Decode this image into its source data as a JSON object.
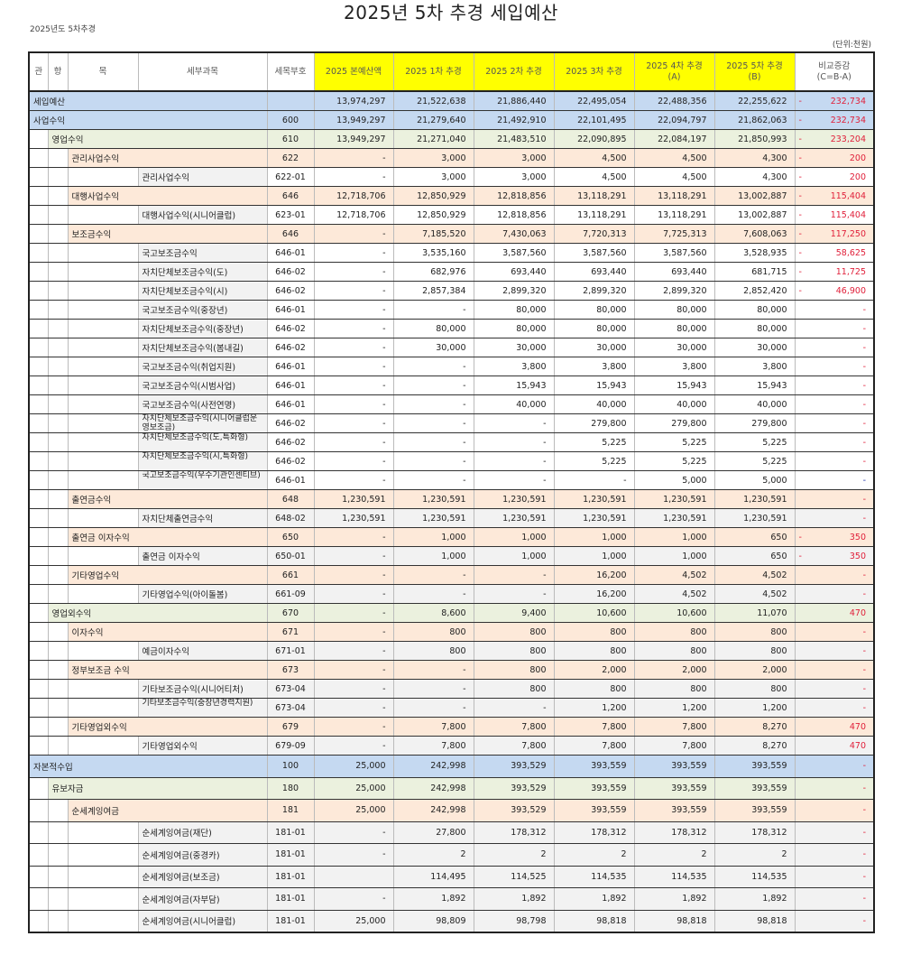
{
  "title": "2025년 5차 추경 세입예산",
  "subtitle": "2025년도 5차추경",
  "unit": "(단위:천원)",
  "colors": {
    "level0": "#c5d9f1",
    "level1": "#ebf1de",
    "level2": "#fde9d9",
    "header_highlight": "#ffff00",
    "detail": "#f2f2f2",
    "negative": "#e0203a",
    "blue_dash": "#2233aa"
  },
  "table": {
    "headers": [
      "관",
      "항",
      "목",
      "세부과목",
      "세목부호",
      "2025 본예산액",
      "2025 1차 추경",
      "2025 2차 추경",
      "2025 3차 추경",
      "2025 4차 추경\n(A)",
      "2025 5차 추경\n(B)",
      "비교증감\n(C=B-A)"
    ],
    "rows": [
      {
        "lvl": 0,
        "name": "세입예산",
        "code": "",
        "vals": [
          "13,974,297",
          "21,522,638",
          "21,886,440",
          "22,495,054",
          "22,488,356",
          "22,255,622"
        ],
        "sign": "-",
        "diff": "232,734"
      },
      {
        "lvl": 0,
        "name": "사업수익",
        "code": "600",
        "vals": [
          "13,949,297",
          "21,279,640",
          "21,492,910",
          "22,101,495",
          "22,094,797",
          "21,862,063"
        ],
        "sign": "-",
        "diff": "232,734"
      },
      {
        "lvl": 1,
        "name": "영업수익",
        "code": "610",
        "vals": [
          "13,949,297",
          "21,271,040",
          "21,483,510",
          "22,090,895",
          "22,084,197",
          "21,850,993"
        ],
        "sign": "-",
        "diff": "233,204"
      },
      {
        "lvl": 2,
        "name": "관리사업수익",
        "code": "622",
        "vals": [
          "-",
          "3,000",
          "3,000",
          "4,500",
          "4,500",
          "4,300"
        ],
        "sign": "-",
        "diff": "200"
      },
      {
        "lvl": 3,
        "name": "관리사업수익",
        "code": "622-01",
        "vals": [
          "-",
          "3,000",
          "3,000",
          "4,500",
          "4,500",
          "4,300"
        ],
        "sign": "-",
        "diff": "200"
      },
      {
        "lvl": 2,
        "name": "대행사업수익",
        "code": "646",
        "vals": [
          "12,718,706",
          "12,850,929",
          "12,818,856",
          "13,118,291",
          "13,118,291",
          "13,002,887"
        ],
        "sign": "-",
        "diff": "115,404"
      },
      {
        "lvl": 3,
        "name": "대행사업수익(시니어클럽)",
        "code": "623-01",
        "vals": [
          "12,718,706",
          "12,850,929",
          "12,818,856",
          "13,118,291",
          "13,118,291",
          "13,002,887"
        ],
        "sign": "-",
        "diff": "115,404"
      },
      {
        "lvl": 2,
        "name": "보조금수익",
        "code": "646",
        "vals": [
          "-",
          "7,185,520",
          "7,430,063",
          "7,720,313",
          "7,725,313",
          "7,608,063"
        ],
        "sign": "-",
        "diff": "117,250"
      },
      {
        "lvl": 3,
        "name": "국고보조금수익",
        "code": "646-01",
        "vals": [
          "-",
          "3,535,160",
          "3,587,560",
          "3,587,560",
          "3,587,560",
          "3,528,935"
        ],
        "sign": "-",
        "diff": "58,625"
      },
      {
        "lvl": 3,
        "name": "자치단체보조금수익(도)",
        "code": "646-02",
        "vals": [
          "-",
          "682,976",
          "693,440",
          "693,440",
          "693,440",
          "681,715"
        ],
        "sign": "-",
        "diff": "11,725"
      },
      {
        "lvl": 3,
        "name": "자치단체보조금수익(시)",
        "code": "646-02",
        "vals": [
          "-",
          "2,857,384",
          "2,899,320",
          "2,899,320",
          "2,899,320",
          "2,852,420"
        ],
        "sign": "-",
        "diff": "46,900"
      },
      {
        "lvl": 3,
        "name": "국고보조금수익(중장년)",
        "code": "646-01",
        "vals": [
          "-",
          "-",
          "80,000",
          "80,000",
          "80,000",
          "80,000"
        ],
        "sign": "",
        "diff": "-"
      },
      {
        "lvl": 3,
        "name": "자치단체보조금수익(중장년)",
        "code": "646-02",
        "vals": [
          "-",
          "80,000",
          "80,000",
          "80,000",
          "80,000",
          "80,000"
        ],
        "sign": "",
        "diff": "-"
      },
      {
        "lvl": 3,
        "name": "자치단체보조금수익(봄내길)",
        "code": "646-02",
        "vals": [
          "-",
          "30,000",
          "30,000",
          "30,000",
          "30,000",
          "30,000"
        ],
        "sign": "",
        "diff": "-"
      },
      {
        "lvl": 3,
        "name": "국고보조금수익(취업지원)",
        "code": "646-01",
        "vals": [
          "-",
          "-",
          "3,800",
          "3,800",
          "3,800",
          "3,800"
        ],
        "sign": "",
        "diff": "-"
      },
      {
        "lvl": 3,
        "name": "국고보조금수익(시범사업)",
        "code": "646-01",
        "vals": [
          "-",
          "-",
          "15,943",
          "15,943",
          "15,943",
          "15,943"
        ],
        "sign": "",
        "diff": "-"
      },
      {
        "lvl": 3,
        "name": "국고보조금수익(사전연명)",
        "code": "646-01",
        "vals": [
          "-",
          "-",
          "40,000",
          "40,000",
          "40,000",
          "40,000"
        ],
        "sign": "",
        "diff": "-"
      },
      {
        "lvl": 3,
        "name": "자치단체보조금수익(시니어클럽운영보조금)",
        "code": "646-02",
        "vals": [
          "-",
          "-",
          "-",
          "279,800",
          "279,800",
          "279,800"
        ],
        "sign": "",
        "diff": "-"
      },
      {
        "lvl": 3,
        "name": "자치단체보조금수익(도,특화형)",
        "code": "646-02",
        "vals": [
          "-",
          "-",
          "-",
          "5,225",
          "5,225",
          "5,225"
        ],
        "sign": "",
        "diff": "-"
      },
      {
        "lvl": 3,
        "name": "자치단체보조금수익(시,특화형)",
        "code": "646-02",
        "vals": [
          "-",
          "-",
          "-",
          "5,225",
          "5,225",
          "5,225"
        ],
        "sign": "",
        "diff": "-"
      },
      {
        "lvl": 3,
        "name": "국고보조금수익(우수기관인센티브)",
        "code": "646-01",
        "vals": [
          "-",
          "-",
          "-",
          "-",
          "5,000",
          "5,000"
        ],
        "sign": "",
        "diff": "-",
        "diff_color": "blue"
      },
      {
        "lvl": 2,
        "name": "출연금수익",
        "code": "648",
        "vals": [
          "1,230,591",
          "1,230,591",
          "1,230,591",
          "1,230,591",
          "1,230,591",
          "1,230,591"
        ],
        "sign": "",
        "diff": "-"
      },
      {
        "lvl": 3,
        "name": "자치단체출연금수익",
        "code": "648-02",
        "vals": [
          "1,230,591",
          "1,230,591",
          "1,230,591",
          "1,230,591",
          "1,230,591",
          "1,230,591"
        ],
        "sign": "",
        "diff": "-"
      },
      {
        "lvl": 2,
        "name": "출연금 이자수익",
        "code": "650",
        "vals": [
          "-",
          "1,000",
          "1,000",
          "1,000",
          "1,000",
          "650"
        ],
        "sign": "-",
        "diff": "350"
      },
      {
        "lvl": 3,
        "name": "출연금 이자수익",
        "code": "650-01",
        "vals": [
          "-",
          "1,000",
          "1,000",
          "1,000",
          "1,000",
          "650"
        ],
        "sign": "-",
        "diff": "350"
      },
      {
        "lvl": 2,
        "name": "기타영업수익",
        "code": "661",
        "vals": [
          "-",
          "-",
          "-",
          "16,200",
          "4,502",
          "4,502"
        ],
        "sign": "",
        "diff": "-"
      },
      {
        "lvl": 3,
        "name": "기타영업수익(아이돌봄)",
        "code": "661-09",
        "vals": [
          "-",
          "-",
          "-",
          "16,200",
          "4,502",
          "4,502"
        ],
        "sign": "",
        "diff": "-"
      },
      {
        "lvl": 1,
        "name": "영업외수익",
        "code": "670",
        "vals": [
          "-",
          "8,600",
          "9,400",
          "10,600",
          "10,600",
          "11,070"
        ],
        "sign": "",
        "diff": "470"
      },
      {
        "lvl": 2,
        "name": "이자수익",
        "code": "671",
        "vals": [
          "-",
          "800",
          "800",
          "800",
          "800",
          "800"
        ],
        "sign": "",
        "diff": "-"
      },
      {
        "lvl": 3,
        "name": "예금이자수익",
        "code": "671-01",
        "vals": [
          "-",
          "800",
          "800",
          "800",
          "800",
          "800"
        ],
        "sign": "",
        "diff": "-"
      },
      {
        "lvl": 2,
        "name": "정부보조금 수익",
        "code": "673",
        "vals": [
          "-",
          "-",
          "800",
          "2,000",
          "2,000",
          "2,000"
        ],
        "sign": "",
        "diff": "-"
      },
      {
        "lvl": 3,
        "name": "기타보조금수익(시니어티처)",
        "code": "673-04",
        "vals": [
          "-",
          "-",
          "800",
          "800",
          "800",
          "800"
        ],
        "sign": "",
        "diff": "-"
      },
      {
        "lvl": 3,
        "name": "기타보조금수익(중장년경력지원)",
        "code": "673-04",
        "vals": [
          "-",
          "-",
          "-",
          "1,200",
          "1,200",
          "1,200"
        ],
        "sign": "",
        "diff": "-"
      },
      {
        "lvl": 2,
        "name": "기타영업외수익",
        "code": "679",
        "vals": [
          "-",
          "7,800",
          "7,800",
          "7,800",
          "7,800",
          "8,270"
        ],
        "sign": "",
        "diff": "470"
      },
      {
        "lvl": 3,
        "name": "기타영업외수익",
        "code": "679-09",
        "vals": [
          "-",
          "7,800",
          "7,800",
          "7,800",
          "7,800",
          "8,270"
        ],
        "sign": "",
        "diff": "470"
      },
      {
        "lvl": 0,
        "name": "자본적수입",
        "code": "100",
        "vals": [
          "25,000",
          "242,998",
          "393,529",
          "393,559",
          "393,559",
          "393,559"
        ],
        "sign": "",
        "diff": "-"
      },
      {
        "lvl": 1,
        "name": "유보자금",
        "code": "180",
        "vals": [
          "25,000",
          "242,998",
          "393,529",
          "393,559",
          "393,559",
          "393,559"
        ],
        "sign": "",
        "diff": "-"
      },
      {
        "lvl": 2,
        "name": "순세계잉여금",
        "code": "181",
        "vals": [
          "25,000",
          "242,998",
          "393,529",
          "393,559",
          "393,559",
          "393,559"
        ],
        "sign": "",
        "diff": "-"
      },
      {
        "lvl": 3,
        "name": "순세계잉여금(재단)",
        "code": "181-01",
        "vals": [
          "-",
          "27,800",
          "178,312",
          "178,312",
          "178,312",
          "178,312"
        ],
        "sign": "",
        "diff": "-"
      },
      {
        "lvl": 3,
        "name": "순세계잉여금(중경카)",
        "code": "181-01",
        "vals": [
          "-",
          "2",
          "2",
          "2",
          "2",
          "2"
        ],
        "sign": "",
        "diff": "-"
      },
      {
        "lvl": 3,
        "name": "순세계잉여금(보조금)",
        "code": "181-01",
        "vals": [
          "",
          "114,495",
          "114,525",
          "114,535",
          "114,535",
          "114,535"
        ],
        "sign": "",
        "diff": "-"
      },
      {
        "lvl": 3,
        "name": "순세계잉여금(자부담)",
        "code": "181-01",
        "vals": [
          "-",
          "1,892",
          "1,892",
          "1,892",
          "1,892",
          "1,892"
        ],
        "sign": "",
        "diff": "-"
      },
      {
        "lvl": 3,
        "name": "순세계잉여금(시니어클럽)",
        "code": "181-01",
        "vals": [
          "25,000",
          "98,809",
          "98,798",
          "98,818",
          "98,818",
          "98,818"
        ],
        "sign": "",
        "diff": "-"
      }
    ]
  }
}
